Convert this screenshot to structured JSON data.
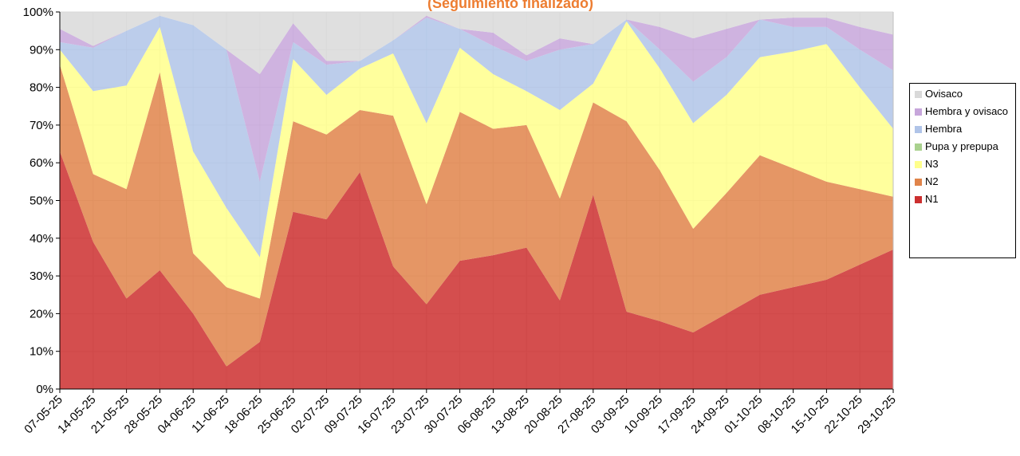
{
  "chart_data": {
    "type": "stacked_area",
    "title": "(Seguimiento finalizado)",
    "categories": [
      "07-05-25",
      "14-05-25",
      "21-05-25",
      "28-05-25",
      "04-06-25",
      "11-06-25",
      "18-06-25",
      "25-06-25",
      "02-07-25",
      "09-07-25",
      "16-07-25",
      "23-07-25",
      "30-07-25",
      "06-08-25",
      "13-08-25",
      "20-08-25",
      "27-08-25",
      "03-09-25",
      "10-09-25",
      "17-09-25",
      "24-09-25",
      "01-10-25",
      "08-10-25",
      "15-10-25",
      "22-10-25",
      "29-10-25"
    ],
    "series": [
      {
        "name": "N1",
        "color": "#cc2f2f",
        "values": [
          63,
          39,
          24,
          31.5,
          20,
          6,
          12.5,
          47,
          45,
          57.5,
          32.5,
          22.5,
          34,
          35.5,
          37.5,
          23.5,
          51.5,
          20.5,
          18,
          15,
          20,
          25,
          27,
          29,
          33,
          37
        ]
      },
      {
        "name": "N2",
        "color": "#e0844a",
        "values": [
          23,
          18,
          29,
          52.5,
          16,
          21,
          11.5,
          24,
          22.5,
          16.5,
          40,
          26.5,
          39.5,
          33.5,
          32.5,
          27,
          24.5,
          50.5,
          40,
          27.5,
          32,
          37,
          31.5,
          26,
          20,
          14
        ]
      },
      {
        "name": "N3",
        "color": "#ffff8c",
        "values": [
          4,
          22,
          27.5,
          12,
          27,
          21,
          11,
          16.5,
          10.5,
          11,
          16.5,
          21.5,
          17,
          14.5,
          9,
          23.5,
          5,
          26.5,
          27,
          28,
          26,
          26,
          31,
          36.5,
          27,
          18
        ]
      },
      {
        "name": "Pupa y prepupa",
        "color": "#a9d18e",
        "values": [
          0,
          0,
          0,
          0,
          0,
          0,
          0,
          0,
          0,
          0,
          0,
          0,
          0,
          0,
          0,
          0,
          0,
          0,
          0,
          0,
          0,
          0,
          0,
          0,
          0,
          0
        ]
      },
      {
        "name": "Hembra",
        "color": "#b0c4e8",
        "values": [
          2,
          11.5,
          14.5,
          3,
          33.5,
          42,
          20,
          4.5,
          8,
          2,
          3.5,
          28,
          5,
          7.5,
          8,
          16,
          10.5,
          0.5,
          5,
          11,
          10,
          10,
          6.5,
          4.5,
          10,
          15.5
        ]
      },
      {
        "name": "Hembra y ovisaco",
        "color": "#c7a6db",
        "values": [
          3.5,
          0.5,
          0,
          0,
          0,
          0,
          28.5,
          5,
          1,
          0,
          0,
          0.5,
          0,
          3.5,
          1.5,
          3,
          0,
          0,
          6,
          11.5,
          7.5,
          0,
          2.5,
          2.5,
          6,
          9.5
        ]
      },
      {
        "name": "Ovisaco",
        "color": "#d9d9d9",
        "values": [
          4.5,
          9,
          5,
          1,
          3.5,
          10,
          16.5,
          3,
          13,
          13,
          7.5,
          1,
          4.5,
          5.5,
          11.5,
          7,
          8.5,
          2,
          4,
          7,
          4.5,
          2,
          1.5,
          1.5,
          4,
          6
        ]
      }
    ],
    "ylim": [
      0,
      100
    ],
    "yticks": [
      {
        "value": 0,
        "label": "0%"
      },
      {
        "value": 10,
        "label": "10%"
      },
      {
        "value": 20,
        "label": "20%"
      },
      {
        "value": 30,
        "label": "30%"
      },
      {
        "value": 40,
        "label": "40%"
      },
      {
        "value": 50,
        "label": "50%"
      },
      {
        "value": 60,
        "label": "60%"
      },
      {
        "value": 70,
        "label": "70%"
      },
      {
        "value": 80,
        "label": "80%"
      },
      {
        "value": 90,
        "label": "90%"
      },
      {
        "value": 100,
        "label": "100%"
      }
    ],
    "grid": true,
    "legend": "right"
  }
}
